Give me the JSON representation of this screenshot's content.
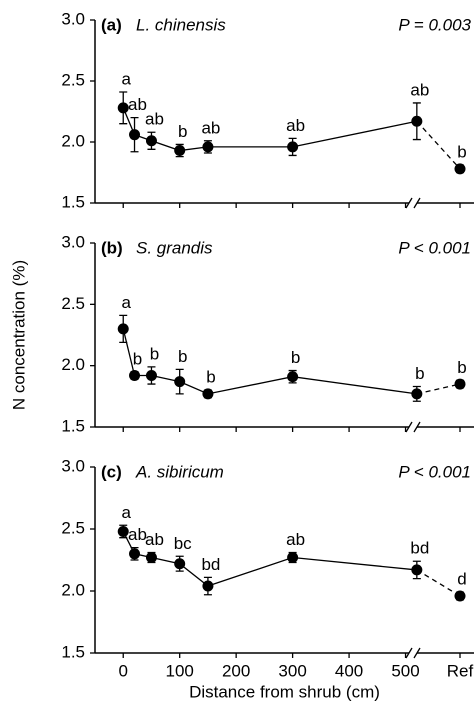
{
  "chart_data": [
    {
      "type": "line",
      "panel": "(a)",
      "title": "L. chinensis",
      "annotation": "P = 0.003",
      "x": [
        0,
        20,
        50,
        100,
        150,
        300,
        520
      ],
      "xlim": [
        -50,
        600
      ],
      "xticks": [
        0,
        100,
        200,
        300,
        400,
        500
      ],
      "ylim": [
        1.5,
        3.0
      ],
      "yticks": [
        {
          "value": 1.5,
          "label": "1.5"
        },
        {
          "value": 2,
          "label": "2.0"
        },
        2.5,
        {
          "value": 3,
          "label": "3.0"
        }
      ],
      "color": "#000000",
      "series": [
        {
          "values": [
            2.28,
            2.06,
            2.01,
            1.93,
            1.96,
            1.96,
            2.17
          ],
          "errors": [
            0.13,
            0.14,
            0.07,
            0.05,
            0.05,
            0.07,
            0.15
          ],
          "letters": [
            "a",
            "ab",
            "ab",
            "b",
            "ab",
            "ab",
            "ab"
          ]
        }
      ],
      "ref": {
        "value": 1.78,
        "error": 0.03,
        "letter": "b"
      }
    },
    {
      "type": "line",
      "panel": "(b)",
      "title": "S. grandis",
      "annotation": "P < 0.001",
      "ylabel": "N concentration (%)",
      "x": [
        0,
        20,
        50,
        100,
        150,
        300,
        520
      ],
      "xlim": [
        -50,
        600
      ],
      "xticks": [
        0,
        100,
        200,
        300,
        400,
        500
      ],
      "ylim": [
        1.5,
        3.0
      ],
      "yticks": [
        {
          "value": 1.5,
          "label": "1.5"
        },
        {
          "value": 2,
          "label": "2.0"
        },
        2.5,
        {
          "value": 3,
          "label": "3.0"
        }
      ],
      "color": "#000000",
      "series": [
        {
          "values": [
            2.3,
            1.92,
            1.92,
            1.87,
            1.77,
            1.91,
            1.77
          ],
          "errors": [
            0.11,
            0.03,
            0.07,
            0.1,
            0.03,
            0.05,
            0.06
          ],
          "letters": [
            "a",
            "b",
            "b",
            "b",
            "b",
            "b",
            "b"
          ]
        }
      ],
      "ref": {
        "value": 1.85,
        "error": 0.03,
        "letter": "b"
      }
    },
    {
      "type": "line",
      "panel": "(c)",
      "title": "A. sibiricum",
      "annotation": "P < 0.001",
      "xlabel": "Distance from shrub (cm)",
      "ref_label": "Ref",
      "x": [
        0,
        20,
        50,
        100,
        150,
        300,
        520
      ],
      "xlim": [
        -50,
        600
      ],
      "xticks": [
        0,
        100,
        200,
        300,
        400,
        500
      ],
      "ylim": [
        1.5,
        3.0
      ],
      "yticks": [
        {
          "value": 1.5,
          "label": "1.5"
        },
        {
          "value": 2,
          "label": "2.0"
        },
        2.5,
        {
          "value": 3,
          "label": "3.0"
        }
      ],
      "color": "#000000",
      "series": [
        {
          "values": [
            2.48,
            2.3,
            2.27,
            2.22,
            2.04,
            2.27,
            2.17
          ],
          "errors": [
            0.05,
            0.05,
            0.04,
            0.06,
            0.07,
            0.04,
            0.07
          ],
          "letters": [
            "a",
            "ab",
            "ab",
            "bc",
            "bd",
            "ab",
            "bd"
          ]
        }
      ],
      "ref": {
        "value": 1.96,
        "error": 0.03,
        "letter": "d"
      }
    }
  ]
}
